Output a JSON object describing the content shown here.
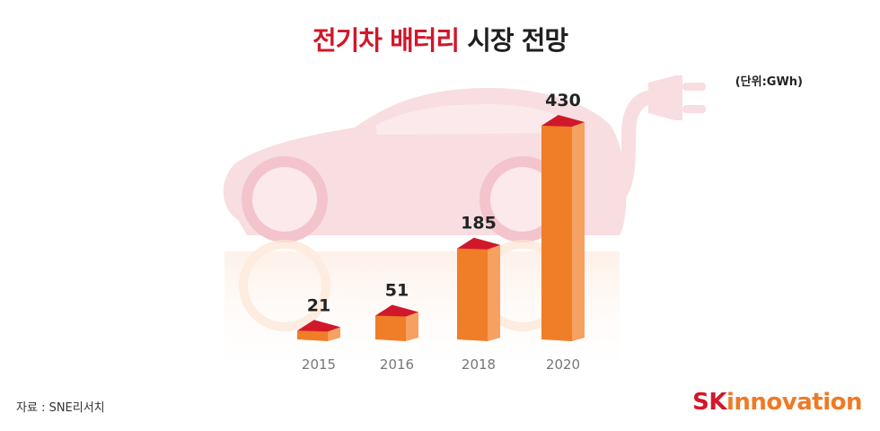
{
  "title": {
    "highlight": "전기차 배터리",
    "rest": "시장 전망"
  },
  "unit": "(단위:GWh)",
  "source": "자료 : SNE리서치",
  "logo": {
    "sk": "SK",
    "rest": "innovation"
  },
  "colors": {
    "title_accent": "#d0182b",
    "bar_top": "#d0182b",
    "bar_front": "#f07d27",
    "bar_side": "#f6a062",
    "car_silhouette": "#f8dde1",
    "logo_rest": "#ee7a25"
  },
  "chart_data": {
    "type": "bar",
    "categories": [
      "2015",
      "2016",
      "2018",
      "2020"
    ],
    "values": [
      21,
      51,
      185,
      430
    ],
    "data_labels": [
      "21",
      "51",
      "185",
      "430"
    ],
    "title": "전기차 배터리 시장 전망",
    "ylabel": "",
    "unit": "GWh",
    "ylim": [
      0,
      430
    ],
    "grid": false,
    "style": "3d-bar"
  }
}
